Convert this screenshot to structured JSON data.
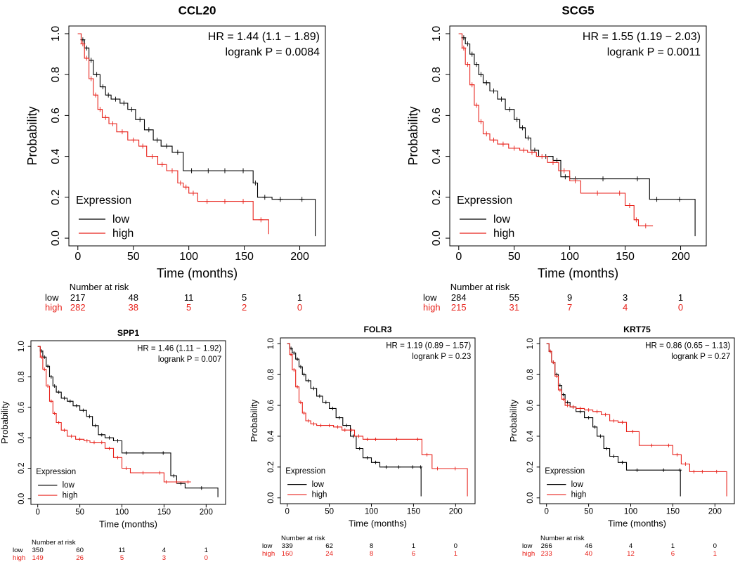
{
  "colors": {
    "low": "#000000",
    "high": "#e8221b",
    "axis": "#000000"
  },
  "shared": {
    "xlabel": "Time (months)",
    "ylabel": "Probability",
    "legend_title": "Expression",
    "legend_low": "low",
    "legend_high": "high",
    "risk_header": "Number at risk",
    "risk_low_label": "low",
    "risk_high_label": "high",
    "x_ticks": [
      "0",
      "50",
      "100",
      "150",
      "200"
    ],
    "y_ticks": [
      "0.0",
      "0.2",
      "0.4",
      "0.6",
      "0.8",
      "1.0"
    ]
  },
  "chart_data": [
    {
      "type": "line",
      "title": "CCL20",
      "hr_text": "HR = 1.44 (1.1 − 1.89)",
      "logrank_text": "logrank P = 0.0084",
      "xlim": [
        0,
        215
      ],
      "ylim": [
        0,
        1
      ],
      "series": [
        {
          "name": "low",
          "x": [
            0,
            3,
            6,
            10,
            14,
            20,
            25,
            30,
            38,
            45,
            52,
            60,
            68,
            75,
            85,
            95,
            110,
            125,
            140,
            158,
            162,
            175,
            190,
            214
          ],
          "y": [
            1.0,
            0.97,
            0.93,
            0.87,
            0.8,
            0.74,
            0.7,
            0.68,
            0.66,
            0.63,
            0.58,
            0.53,
            0.48,
            0.45,
            0.42,
            0.33,
            0.33,
            0.33,
            0.33,
            0.27,
            0.2,
            0.19,
            0.19,
            0.01
          ]
        },
        {
          "name": "high",
          "x": [
            0,
            3,
            6,
            10,
            14,
            18,
            22,
            28,
            35,
            45,
            55,
            62,
            72,
            80,
            90,
            95,
            100,
            108,
            125,
            140,
            158,
            172
          ],
          "y": [
            1.0,
            0.95,
            0.88,
            0.78,
            0.7,
            0.63,
            0.59,
            0.56,
            0.52,
            0.48,
            0.45,
            0.4,
            0.36,
            0.33,
            0.27,
            0.25,
            0.22,
            0.18,
            0.18,
            0.18,
            0.09,
            0.02
          ]
        }
      ],
      "risk_x": [
        "0",
        "50",
        "100",
        "150",
        "200"
      ],
      "risk_low": [
        "217",
        "48",
        "11",
        "5",
        "1"
      ],
      "risk_high": [
        "282",
        "38",
        "5",
        "2",
        "0"
      ]
    },
    {
      "type": "line",
      "title": "SCG5",
      "hr_text": "HR = 1.55 (1.19 − 2.03)",
      "logrank_text": "logrank P = 0.0011",
      "xlim": [
        0,
        215
      ],
      "ylim": [
        0,
        1
      ],
      "series": [
        {
          "name": "low",
          "x": [
            0,
            3,
            6,
            10,
            14,
            18,
            22,
            28,
            35,
            42,
            50,
            55,
            60,
            65,
            72,
            85,
            92,
            100,
            110,
            150,
            172,
            185,
            213
          ],
          "y": [
            1.0,
            0.98,
            0.95,
            0.9,
            0.85,
            0.8,
            0.76,
            0.72,
            0.68,
            0.63,
            0.58,
            0.54,
            0.49,
            0.43,
            0.4,
            0.38,
            0.3,
            0.29,
            0.29,
            0.29,
            0.19,
            0.19,
            0.01
          ]
        },
        {
          "name": "high",
          "x": [
            0,
            3,
            6,
            10,
            14,
            18,
            22,
            28,
            35,
            45,
            55,
            62,
            70,
            80,
            90,
            100,
            110,
            140,
            150,
            158,
            162,
            175
          ],
          "y": [
            1.0,
            0.93,
            0.85,
            0.75,
            0.65,
            0.57,
            0.51,
            0.48,
            0.46,
            0.44,
            0.43,
            0.42,
            0.4,
            0.37,
            0.33,
            0.28,
            0.22,
            0.22,
            0.16,
            0.09,
            0.06,
            0.06
          ]
        }
      ],
      "risk_x": [
        "0",
        "50",
        "100",
        "150",
        "200"
      ],
      "risk_low": [
        "284",
        "55",
        "9",
        "3",
        "1"
      ],
      "risk_high": [
        "215",
        "31",
        "7",
        "4",
        "0"
      ]
    },
    {
      "type": "line",
      "title": "SPP1",
      "hr_text": "HR = 1.46 (1.11 − 1.92)",
      "logrank_text": "logrank P = 0.007",
      "xlim": [
        0,
        215
      ],
      "ylim": [
        0,
        1
      ],
      "series": [
        {
          "name": "low",
          "x": [
            0,
            3,
            6,
            10,
            14,
            18,
            22,
            28,
            35,
            42,
            50,
            58,
            65,
            72,
            80,
            90,
            100,
            110,
            140,
            158,
            165,
            175,
            214
          ],
          "y": [
            1.0,
            0.97,
            0.93,
            0.87,
            0.8,
            0.74,
            0.7,
            0.66,
            0.64,
            0.61,
            0.58,
            0.54,
            0.48,
            0.42,
            0.4,
            0.38,
            0.3,
            0.3,
            0.3,
            0.15,
            0.1,
            0.07,
            0.01
          ]
        },
        {
          "name": "high",
          "x": [
            0,
            3,
            6,
            10,
            14,
            18,
            22,
            28,
            35,
            45,
            55,
            62,
            72,
            80,
            90,
            100,
            110,
            140,
            150,
            155,
            175,
            182
          ],
          "y": [
            1.0,
            0.93,
            0.85,
            0.74,
            0.64,
            0.56,
            0.5,
            0.45,
            0.41,
            0.39,
            0.38,
            0.37,
            0.37,
            0.33,
            0.27,
            0.2,
            0.17,
            0.17,
            0.11,
            0.11,
            0.11,
            0.11
          ]
        }
      ],
      "risk_x": [
        "0",
        "50",
        "100",
        "150",
        "200"
      ],
      "risk_low": [
        "350",
        "60",
        "11",
        "4",
        "1"
      ],
      "risk_high": [
        "149",
        "26",
        "5",
        "3",
        "0"
      ]
    },
    {
      "type": "line",
      "title": "FOLR3",
      "hr_text": "HR = 1.19 (0.89 − 1.57)",
      "logrank_text": "logrank P = 0.23",
      "xlim": [
        0,
        215
      ],
      "ylim": [
        0,
        1
      ],
      "series": [
        {
          "name": "low",
          "x": [
            0,
            3,
            6,
            10,
            14,
            18,
            22,
            28,
            35,
            42,
            50,
            58,
            66,
            75,
            82,
            90,
            100,
            110,
            125,
            140,
            158,
            159
          ],
          "y": [
            1.0,
            0.97,
            0.94,
            0.9,
            0.85,
            0.8,
            0.76,
            0.71,
            0.66,
            0.62,
            0.58,
            0.52,
            0.47,
            0.4,
            0.32,
            0.26,
            0.23,
            0.2,
            0.2,
            0.2,
            0.2,
            0.01
          ]
        },
        {
          "name": "high",
          "x": [
            0,
            3,
            6,
            10,
            14,
            18,
            22,
            28,
            35,
            45,
            55,
            65,
            72,
            80,
            90,
            100,
            110,
            150,
            160,
            172,
            185,
            214
          ],
          "y": [
            1.0,
            0.93,
            0.83,
            0.72,
            0.62,
            0.55,
            0.5,
            0.48,
            0.47,
            0.47,
            0.46,
            0.44,
            0.44,
            0.4,
            0.38,
            0.38,
            0.38,
            0.38,
            0.28,
            0.19,
            0.19,
            0.01
          ]
        }
      ],
      "risk_x": [
        "0",
        "50",
        "100",
        "150",
        "200"
      ],
      "risk_low": [
        "339",
        "62",
        "8",
        "1",
        "0"
      ],
      "risk_high": [
        "160",
        "24",
        "8",
        "6",
        "1"
      ]
    },
    {
      "type": "line",
      "title": "KRT75",
      "hr_text": "HR = 0.86 (0.65 − 1.13)",
      "logrank_text": "logrank P = 0.27",
      "xlim": [
        0,
        215
      ],
      "ylim": [
        0,
        1
      ],
      "series": [
        {
          "name": "low",
          "x": [
            0,
            3,
            6,
            10,
            14,
            18,
            22,
            28,
            35,
            45,
            55,
            60,
            68,
            75,
            85,
            95,
            120,
            158,
            159
          ],
          "y": [
            1.0,
            0.95,
            0.88,
            0.8,
            0.73,
            0.67,
            0.62,
            0.59,
            0.56,
            0.52,
            0.46,
            0.4,
            0.32,
            0.27,
            0.23,
            0.18,
            0.18,
            0.18,
            0.01
          ]
        },
        {
          "name": "high",
          "x": [
            0,
            3,
            6,
            10,
            14,
            18,
            22,
            28,
            35,
            45,
            55,
            65,
            75,
            85,
            95,
            110,
            140,
            150,
            160,
            170,
            180,
            190,
            214
          ],
          "y": [
            1.0,
            0.95,
            0.88,
            0.79,
            0.7,
            0.64,
            0.6,
            0.59,
            0.58,
            0.57,
            0.56,
            0.54,
            0.5,
            0.49,
            0.43,
            0.34,
            0.34,
            0.28,
            0.22,
            0.17,
            0.17,
            0.17,
            0.01
          ]
        }
      ],
      "risk_x": [
        "0",
        "50",
        "100",
        "150",
        "200"
      ],
      "risk_low": [
        "266",
        "46",
        "4",
        "1",
        "0"
      ],
      "risk_high": [
        "233",
        "40",
        "12",
        "6",
        "1"
      ]
    }
  ]
}
